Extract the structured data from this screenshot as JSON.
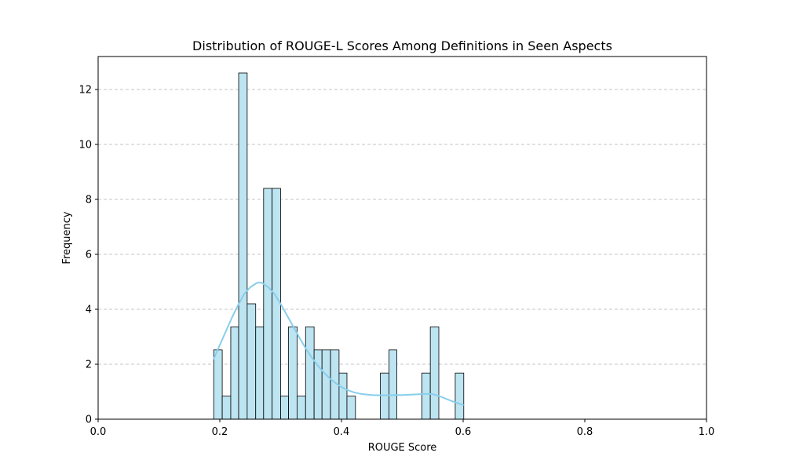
{
  "chart_data": {
    "type": "bar",
    "title": "Distribution of ROUGE-L Scores Among Definitions in Seen Aspects",
    "xlabel": "ROUGE Score",
    "ylabel": "Frequency",
    "xlim": [
      0.0,
      1.0
    ],
    "ylim": [
      0,
      13.2
    ],
    "xticks": [
      "0.0",
      "0.2",
      "0.4",
      "0.6",
      "0.8",
      "1.0"
    ],
    "yticks": [
      "0",
      "2",
      "4",
      "6",
      "8",
      "10",
      "12"
    ],
    "grid": "y-dashed",
    "bar_color": "#bde4f1",
    "bar_edge_color": "#000000",
    "kde_color": "#87ceeb",
    "bins": [
      {
        "x0": 0.19,
        "x1": 0.204,
        "value": 2.52
      },
      {
        "x0": 0.204,
        "x1": 0.218,
        "value": 0.84
      },
      {
        "x0": 0.218,
        "x1": 0.231,
        "value": 3.36
      },
      {
        "x0": 0.231,
        "x1": 0.245,
        "value": 12.6
      },
      {
        "x0": 0.245,
        "x1": 0.259,
        "value": 4.2
      },
      {
        "x0": 0.259,
        "x1": 0.272,
        "value": 3.36
      },
      {
        "x0": 0.272,
        "x1": 0.286,
        "value": 8.4
      },
      {
        "x0": 0.286,
        "x1": 0.3,
        "value": 8.4
      },
      {
        "x0": 0.3,
        "x1": 0.313,
        "value": 0.84
      },
      {
        "x0": 0.313,
        "x1": 0.327,
        "value": 3.36
      },
      {
        "x0": 0.327,
        "x1": 0.341,
        "value": 0.84
      },
      {
        "x0": 0.341,
        "x1": 0.355,
        "value": 3.36
      },
      {
        "x0": 0.355,
        "x1": 0.368,
        "value": 2.52
      },
      {
        "x0": 0.368,
        "x1": 0.382,
        "value": 2.52
      },
      {
        "x0": 0.382,
        "x1": 0.396,
        "value": 2.52
      },
      {
        "x0": 0.396,
        "x1": 0.409,
        "value": 1.68
      },
      {
        "x0": 0.409,
        "x1": 0.423,
        "value": 0.84
      },
      {
        "x0": 0.464,
        "x1": 0.478,
        "value": 1.68
      },
      {
        "x0": 0.478,
        "x1": 0.491,
        "value": 2.52
      },
      {
        "x0": 0.532,
        "x1": 0.546,
        "value": 1.68
      },
      {
        "x0": 0.546,
        "x1": 0.56,
        "value": 3.36
      },
      {
        "x0": 0.587,
        "x1": 0.601,
        "value": 1.68
      }
    ],
    "kde": {
      "x": [
        0.19,
        0.2,
        0.21,
        0.22,
        0.23,
        0.24,
        0.25,
        0.26,
        0.265,
        0.27,
        0.28,
        0.29,
        0.3,
        0.31,
        0.32,
        0.33,
        0.34,
        0.35,
        0.36,
        0.37,
        0.38,
        0.39,
        0.4,
        0.41,
        0.42,
        0.43,
        0.44,
        0.45,
        0.46,
        0.47,
        0.48,
        0.49,
        0.5,
        0.51,
        0.52,
        0.53,
        0.54,
        0.55,
        0.56,
        0.57,
        0.58,
        0.59,
        0.6
      ],
      "y": [
        2.2,
        2.7,
        3.2,
        3.7,
        4.15,
        4.55,
        4.8,
        4.95,
        4.98,
        4.95,
        4.8,
        4.55,
        4.2,
        3.8,
        3.4,
        3.0,
        2.62,
        2.28,
        1.98,
        1.72,
        1.5,
        1.32,
        1.17,
        1.06,
        0.98,
        0.93,
        0.9,
        0.88,
        0.87,
        0.87,
        0.87,
        0.88,
        0.88,
        0.89,
        0.9,
        0.91,
        0.92,
        0.91,
        0.85,
        0.76,
        0.67,
        0.59,
        0.52
      ]
    }
  }
}
